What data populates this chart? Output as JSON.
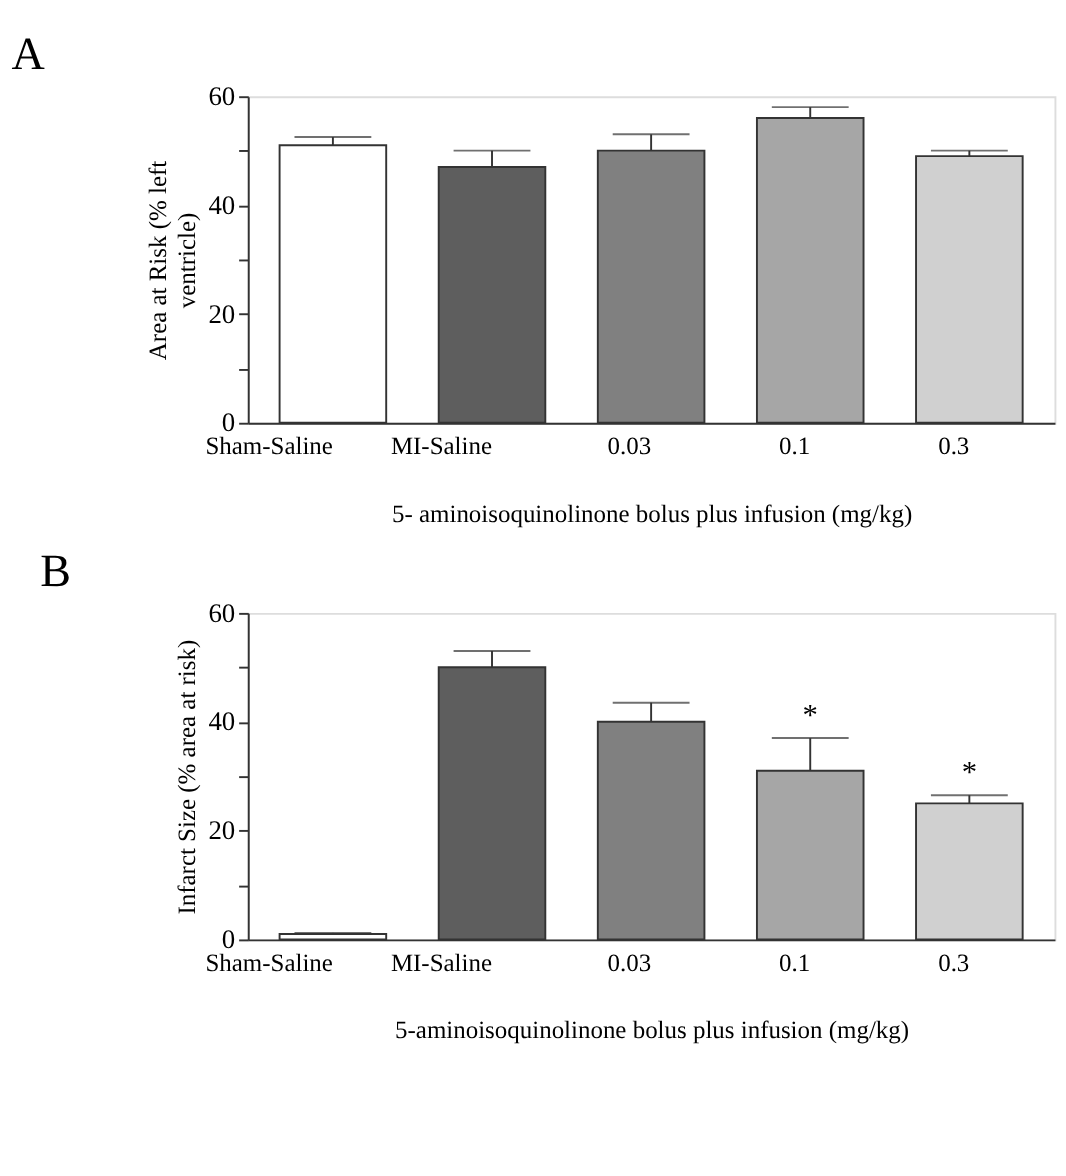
{
  "chart_data": [
    {
      "type": "bar",
      "title": "A",
      "xlabel": "5- aminoisoquinolinone bolus plus infusion (mg/kg)",
      "ylabel": "Area at Risk (% left\nventricle)",
      "categories": [
        "Sham-Saline",
        "MI-Saline",
        "0.03",
        "0.1",
        "0.3"
      ],
      "values": [
        51,
        47,
        50,
        56,
        49
      ],
      "errors": [
        1.5,
        3,
        3,
        2,
        1
      ],
      "colors": [
        "#ffffff",
        "#5e5e5e",
        "#808080",
        "#a6a6a6",
        "#d0d0d0"
      ],
      "ylim": [
        0,
        60
      ],
      "yticks": [
        0,
        {
          "value": 10,
          "label": null
        },
        20,
        {
          "value": 30,
          "label": null
        },
        40,
        {
          "value": 50,
          "label": null
        },
        60
      ],
      "grid": false
    },
    {
      "type": "bar",
      "title": "B",
      "xlabel": "5-aminoisoquinolinone bolus plus infusion (mg/kg)",
      "ylabel": "Infarct Size (% area at risk)",
      "categories": [
        "Sham-Saline",
        "MI-Saline",
        "0.03",
        "0.1",
        "0.3"
      ],
      "values": [
        1,
        50,
        40,
        31,
        25
      ],
      "errors": [
        0.2,
        3,
        3.5,
        6,
        1.5
      ],
      "colors": [
        "#ffffff",
        "#5e5e5e",
        "#808080",
        "#a6a6a6",
        "#d0d0d0"
      ],
      "annotations": [
        {
          "text": "*",
          "x": "0.1",
          "y": 37
        },
        {
          "text": "*",
          "x": "0.3",
          "y": 26.5
        }
      ],
      "ylim": [
        0,
        60
      ],
      "yticks": [
        0,
        {
          "value": 10,
          "label": null
        },
        20,
        {
          "value": 30,
          "label": null
        },
        40,
        {
          "value": 50,
          "label": null
        },
        60
      ],
      "grid": false
    }
  ]
}
